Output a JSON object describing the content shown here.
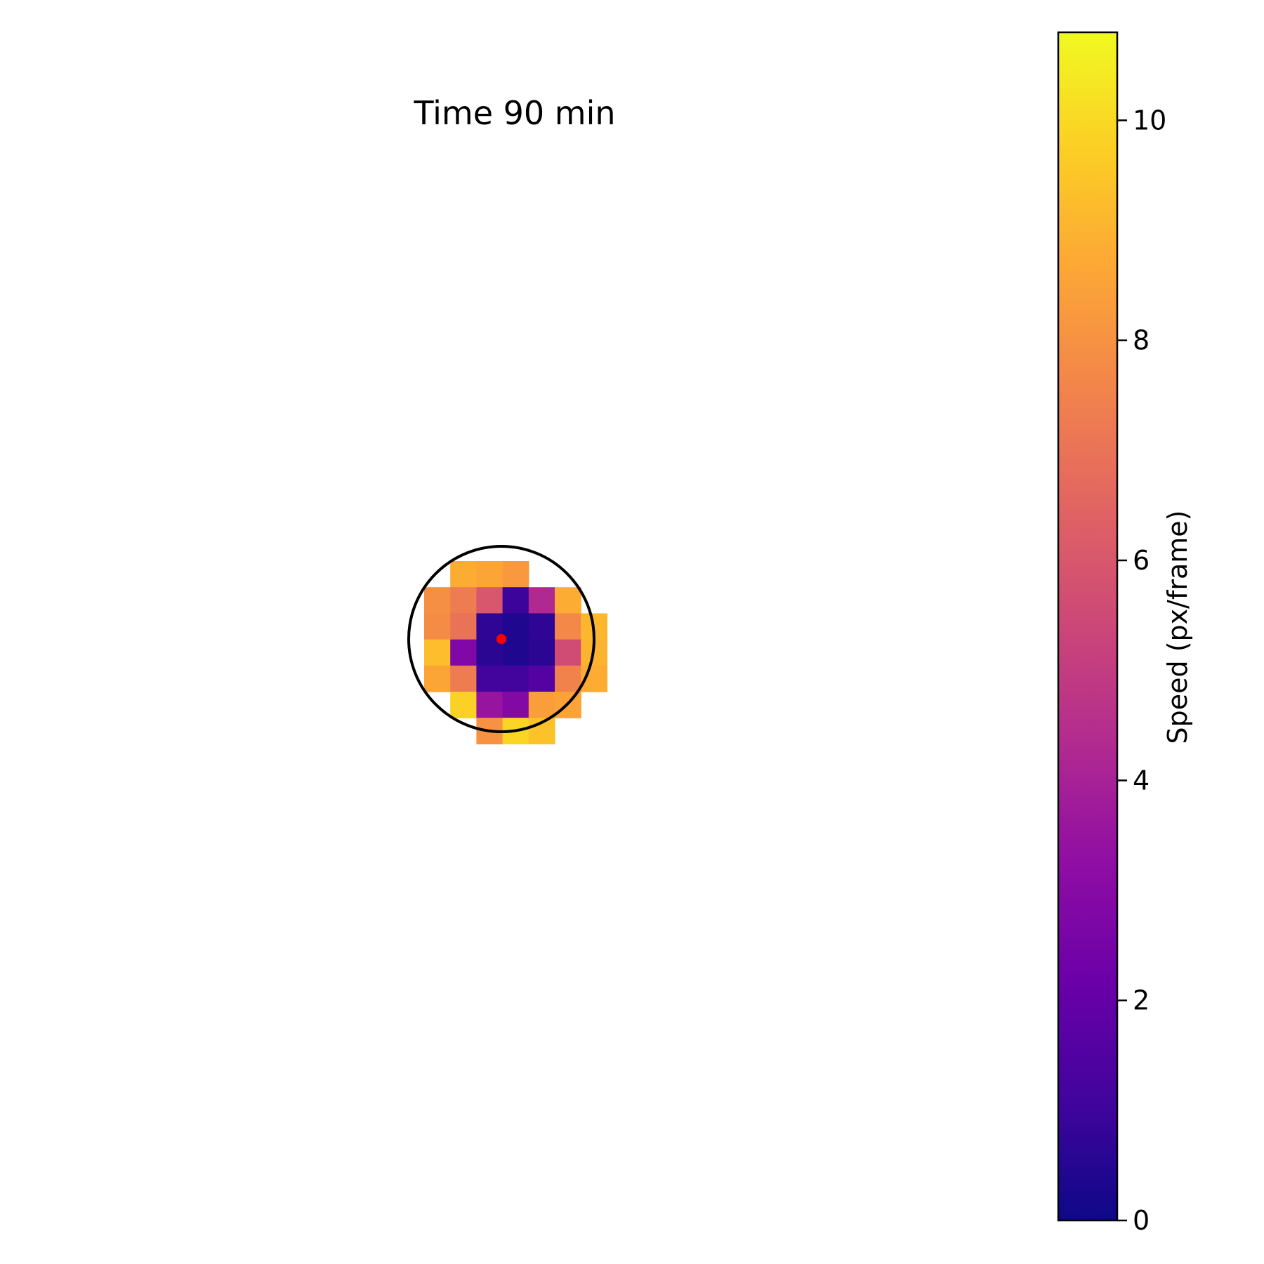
{
  "chart_data": {
    "type": "heatmap",
    "title": "Time 90 min",
    "colorbar": {
      "label": "Speed (px/frame)",
      "colormap": "plasma",
      "range": [
        0,
        10.8
      ],
      "ticks": [
        0,
        2,
        4,
        6,
        8,
        10
      ]
    },
    "cells": [
      {
        "row": 0,
        "col": 1,
        "value": 8.8
      },
      {
        "row": 0,
        "col": 2,
        "value": 8.6
      },
      {
        "row": 0,
        "col": 3,
        "value": 8.2
      },
      {
        "row": 1,
        "col": 0,
        "value": 7.9
      },
      {
        "row": 1,
        "col": 1,
        "value": 7.3
      },
      {
        "row": 1,
        "col": 2,
        "value": 6.0
      },
      {
        "row": 1,
        "col": 3,
        "value": 1.0
      },
      {
        "row": 1,
        "col": 4,
        "value": 4.3
      },
      {
        "row": 1,
        "col": 5,
        "value": 8.8
      },
      {
        "row": 2,
        "col": 0,
        "value": 7.8
      },
      {
        "row": 2,
        "col": 1,
        "value": 7.0
      },
      {
        "row": 2,
        "col": 2,
        "value": 0.7
      },
      {
        "row": 2,
        "col": 3,
        "value": 0.4
      },
      {
        "row": 2,
        "col": 4,
        "value": 0.7
      },
      {
        "row": 2,
        "col": 5,
        "value": 7.7
      },
      {
        "row": 2,
        "col": 6,
        "value": 9.1
      },
      {
        "row": 3,
        "col": 0,
        "value": 9.3
      },
      {
        "row": 3,
        "col": 1,
        "value": 2.8
      },
      {
        "row": 3,
        "col": 2,
        "value": 0.6
      },
      {
        "row": 3,
        "col": 3,
        "value": 0.4
      },
      {
        "row": 3,
        "col": 4,
        "value": 0.6
      },
      {
        "row": 3,
        "col": 5,
        "value": 5.6
      },
      {
        "row": 3,
        "col": 6,
        "value": 9.0
      },
      {
        "row": 4,
        "col": 0,
        "value": 8.6
      },
      {
        "row": 4,
        "col": 1,
        "value": 7.3
      },
      {
        "row": 4,
        "col": 2,
        "value": 1.1
      },
      {
        "row": 4,
        "col": 3,
        "value": 1.1
      },
      {
        "row": 4,
        "col": 4,
        "value": 1.6
      },
      {
        "row": 4,
        "col": 5,
        "value": 7.5
      },
      {
        "row": 4,
        "col": 6,
        "value": 8.8
      },
      {
        "row": 5,
        "col": 1,
        "value": 9.8
      },
      {
        "row": 5,
        "col": 2,
        "value": 3.5
      },
      {
        "row": 5,
        "col": 3,
        "value": 2.9
      },
      {
        "row": 5,
        "col": 4,
        "value": 8.4
      },
      {
        "row": 5,
        "col": 5,
        "value": 8.5
      },
      {
        "row": 6,
        "col": 2,
        "value": 8.0
      },
      {
        "row": 6,
        "col": 3,
        "value": 9.9
      },
      {
        "row": 6,
        "col": 4,
        "value": 9.4
      }
    ],
    "overlay": {
      "circle": "black outline",
      "center_marker": "red dot"
    },
    "axes": "off",
    "grid": false
  }
}
